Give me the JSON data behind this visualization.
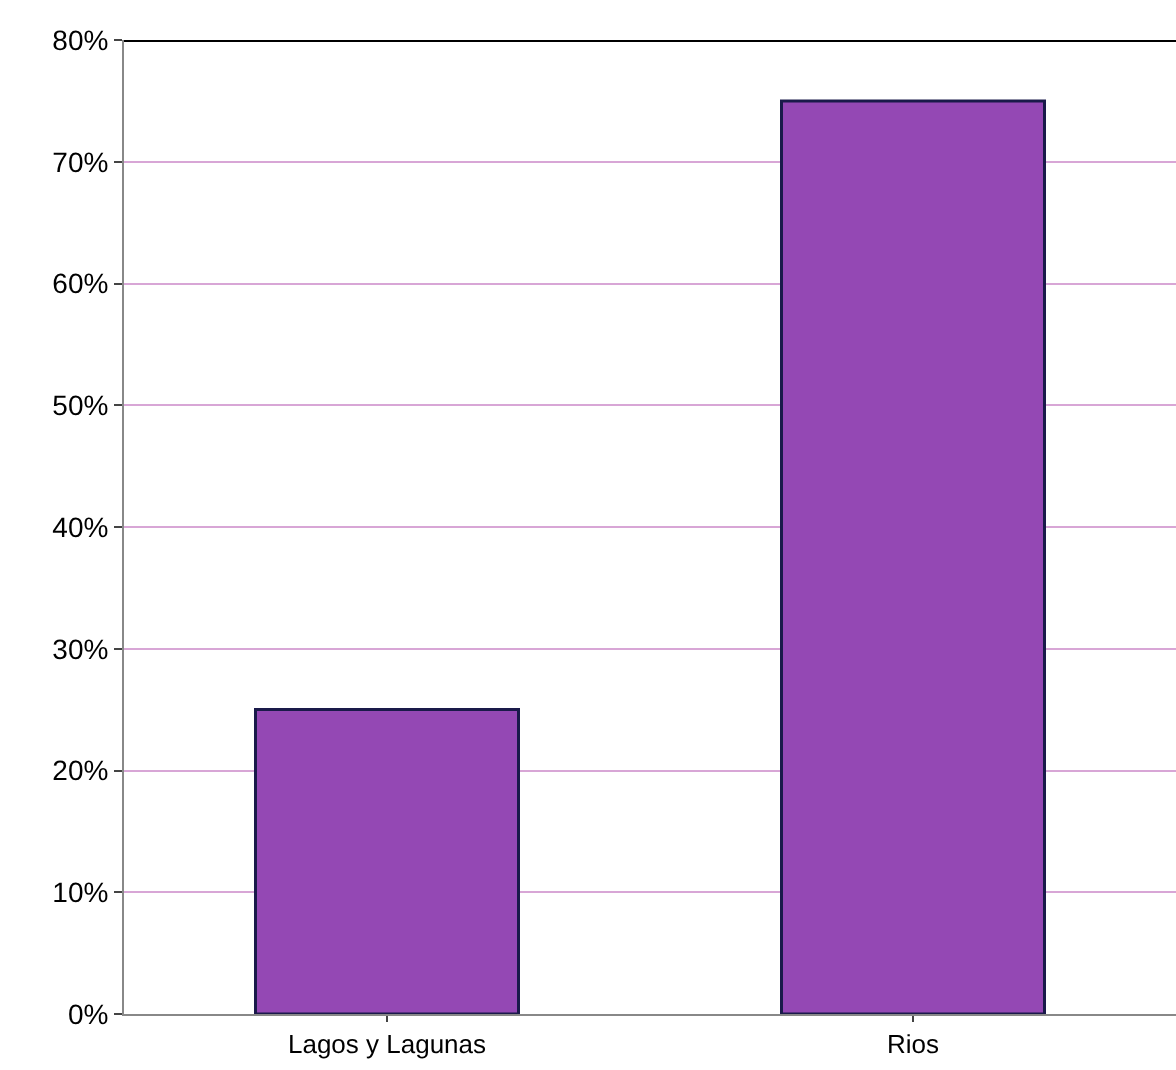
{
  "chart_data": {
    "type": "bar",
    "categories": [
      "Lagos y Lagunas",
      "Rios"
    ],
    "values": [
      25,
      75
    ],
    "color": "#9448b4",
    "ylim": [
      0,
      80
    ],
    "yticks": [
      {
        "value": 0,
        "label": "0%"
      },
      {
        "value": 10,
        "label": "10%"
      },
      {
        "value": 20,
        "label": "20%"
      },
      {
        "value": 30,
        "label": "30%"
      },
      {
        "value": 40,
        "label": "40%"
      },
      {
        "value": 50,
        "label": "50%"
      },
      {
        "value": 60,
        "label": "60%"
      },
      {
        "value": 70,
        "label": "70%"
      },
      {
        "value": 80,
        "label": "80%"
      }
    ],
    "grid": "y",
    "legend": false
  }
}
